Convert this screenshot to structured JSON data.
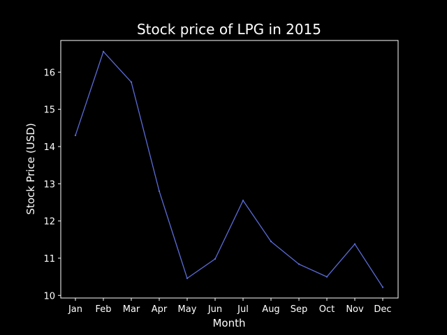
{
  "chart_data": {
    "type": "line",
    "title": "Stock price of LPG in 2015",
    "xlabel": "Month",
    "ylabel": "Stock Price (USD)",
    "categories": [
      "Jan",
      "Feb",
      "Mar",
      "Apr",
      "May",
      "Jun",
      "Jul",
      "Aug",
      "Sep",
      "Oct",
      "Nov",
      "Dec"
    ],
    "values": [
      14.3,
      16.55,
      15.73,
      12.8,
      10.46,
      10.98,
      12.55,
      11.45,
      10.84,
      10.5,
      11.38,
      10.22
    ],
    "ylim": [
      9.93,
      16.85
    ],
    "yticks": [
      10,
      11,
      12,
      13,
      14,
      15,
      16
    ],
    "grid": false,
    "legend": "none",
    "colors": {
      "background": "#000000",
      "axes": "#ffffff",
      "text": "#ffffff",
      "line": "#5b6cd6"
    }
  }
}
